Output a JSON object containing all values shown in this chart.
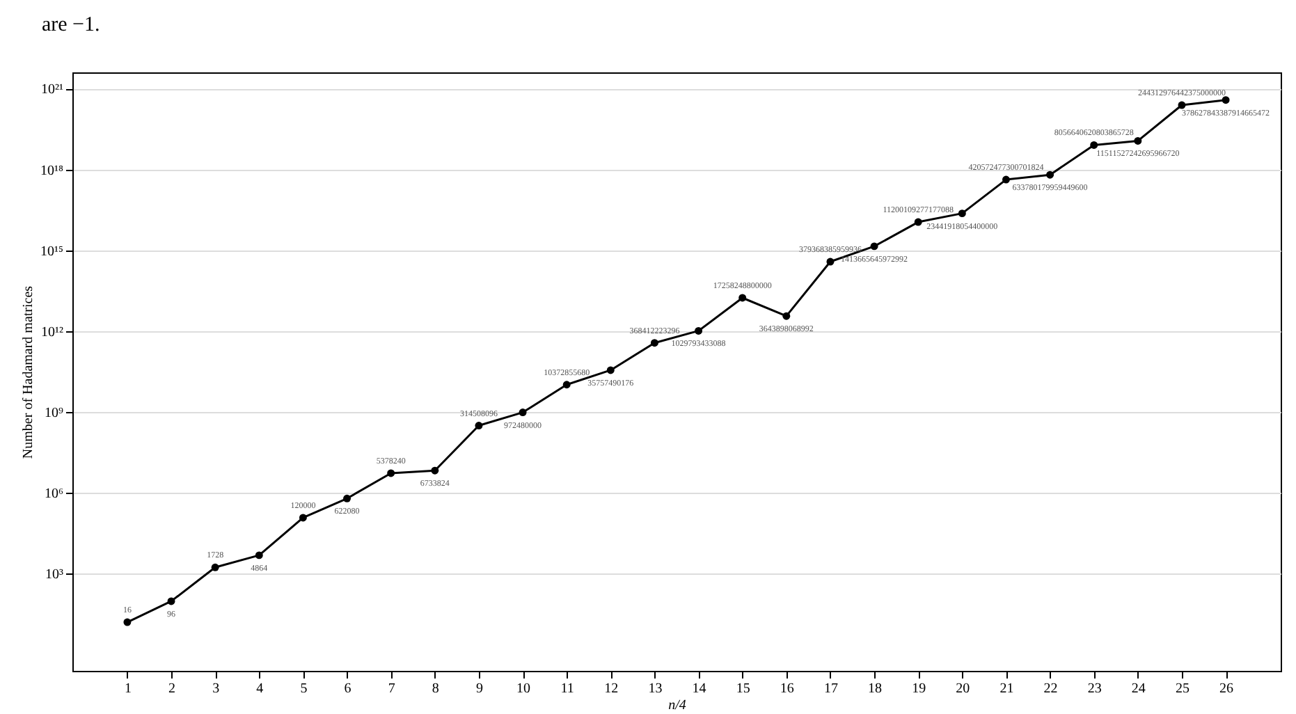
{
  "chart_data": {
    "type": "line",
    "annotations": [
      "are −1."
    ],
    "xlabel": "n/4",
    "ylabel": "Number of Hadamard matrices",
    "x": [
      1,
      2,
      3,
      4,
      5,
      6,
      7,
      8,
      9,
      10,
      11,
      12,
      13,
      14,
      15,
      16,
      17,
      18,
      19,
      20,
      21,
      22,
      23,
      24,
      25,
      26
    ],
    "series": [
      {
        "color": "#000000",
        "values": [
          16,
          96,
          1728,
          4864,
          120000,
          622080,
          5378240,
          6733824,
          314508096,
          972480000,
          10372855680,
          35757490176,
          368412223296,
          1029793433088,
          17258248800000,
          3643898068992,
          379368385959936,
          1413665645972992,
          11200109277177088,
          23441918054400000,
          420572477300701824,
          633780179959449600,
          8056640620803865728,
          11511527242695966720,
          244312976442375000000,
          378627843387914665472
        ],
        "value_labels": [
          "16",
          "96",
          "1728",
          "4864",
          "120000",
          "622080",
          "5378240",
          "6733824",
          "314508096",
          "972480000",
          "10372855680",
          "35757490176",
          "368412223296",
          "1029793433088",
          "17258248800000",
          "3643898068992",
          "379368385959936",
          "1413665645972992",
          "11200109277177088",
          "23441918054400000",
          "420572477300701824",
          "633780179959449600",
          "8056640620803865728",
          "11511527242695966720",
          "244312976442375000000",
          "378627843387914665472"
        ]
      }
    ],
    "log": "y",
    "grid": "y",
    "marker": "circle",
    "line_style": "solid",
    "xlim": [
      -0.25,
      27.25
    ],
    "xticks": [
      1,
      2,
      3,
      4,
      5,
      6,
      7,
      8,
      9,
      10,
      11,
      12,
      13,
      14,
      15,
      16,
      17,
      18,
      19,
      20,
      21,
      22,
      23,
      24,
      25,
      26
    ],
    "ylim": [
      0.25,
      4e+21
    ],
    "yticks": [
      {
        "value": 1000,
        "label": "10³"
      },
      {
        "value": 1000000,
        "label": "10⁶"
      },
      {
        "value": 1000000000,
        "label": "10⁹"
      },
      {
        "value": 1000000000000,
        "label": "10¹²"
      },
      {
        "value": 1000000000000000.0,
        "label": "10¹⁵"
      },
      {
        "value": 1e+18,
        "label": "10¹⁸"
      },
      {
        "value": 1e+21,
        "label": "10²¹"
      }
    ]
  }
}
